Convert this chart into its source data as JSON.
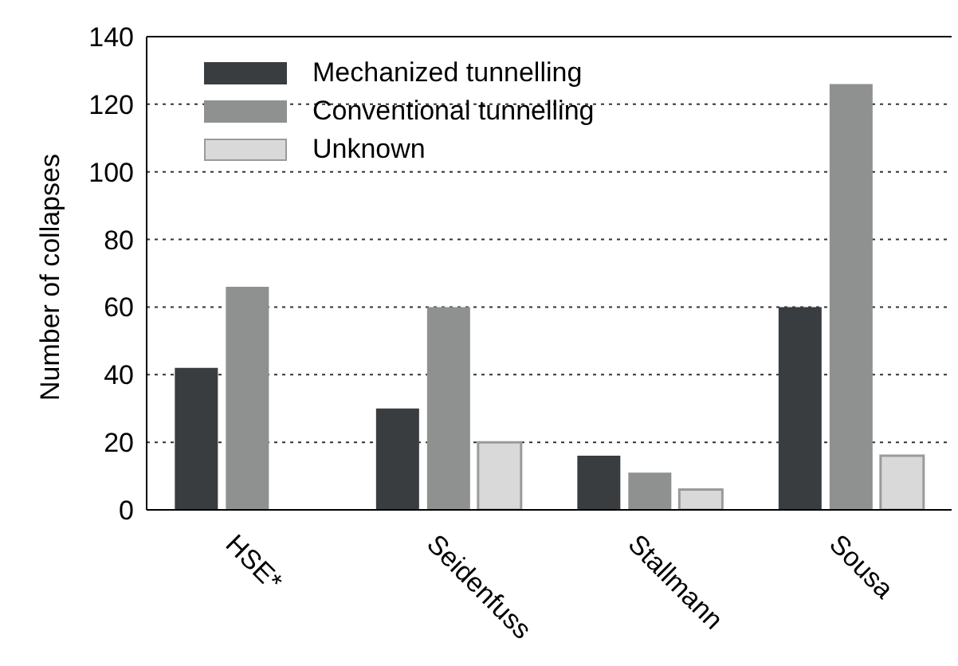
{
  "chart_data": {
    "type": "bar",
    "ylabel": "Number of collapses",
    "categories": [
      "HSE*",
      "Seidenfuss",
      "Stallmann",
      "Sousa"
    ],
    "series": [
      {
        "name": "Mechanized tunnelling",
        "color": "#3a3d40",
        "values": [
          42,
          30,
          16,
          60
        ]
      },
      {
        "name": "Conventional tunnelling",
        "color": "#8f9190",
        "values": [
          66,
          60,
          11,
          126
        ]
      },
      {
        "name": "Unknown",
        "color": "#d9d9d9",
        "values": [
          0,
          20,
          6,
          16
        ]
      }
    ],
    "ylim": [
      0,
      140
    ],
    "yticks": [
      0,
      20,
      40,
      60,
      80,
      100,
      120,
      140
    ],
    "grid": "y",
    "legend": "top left"
  }
}
